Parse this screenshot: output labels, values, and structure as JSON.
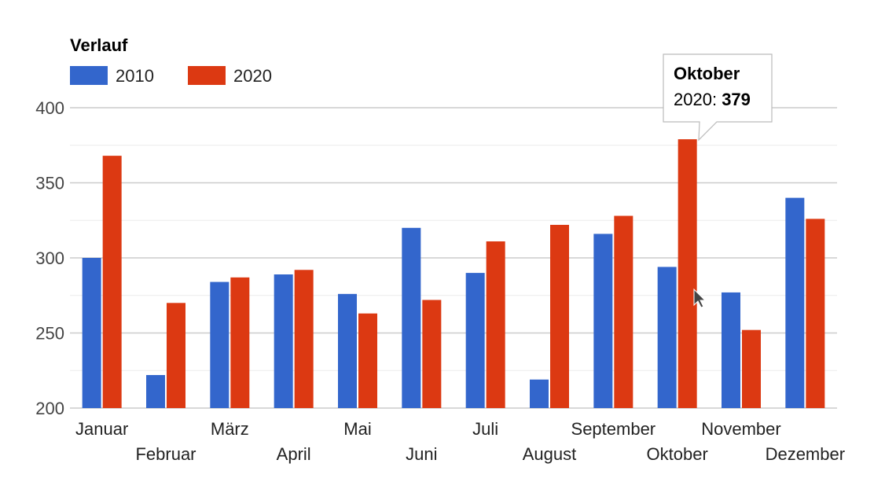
{
  "chart_data": {
    "type": "bar",
    "title": "Verlauf",
    "categories": [
      "Januar",
      "Februar",
      "März",
      "April",
      "Mai",
      "Juni",
      "Juli",
      "August",
      "September",
      "Oktober",
      "November",
      "Dezember"
    ],
    "series": [
      {
        "name": "2010",
        "color": "#3366cc",
        "values": [
          300,
          222,
          284,
          289,
          276,
          320,
          290,
          219,
          316,
          294,
          277,
          340
        ]
      },
      {
        "name": "2020",
        "color": "#dc3912",
        "values": [
          368,
          270,
          287,
          292,
          263,
          272,
          311,
          322,
          328,
          379,
          252,
          326
        ]
      }
    ],
    "yticks": [
      "400",
      "350",
      "300",
      "250",
      "200"
    ],
    "ylim": [
      200,
      400
    ],
    "grid": true,
    "legend_position": "top-left",
    "tooltip": {
      "title": "Oktober",
      "series": "2020",
      "separator": ": ",
      "value": "379"
    }
  }
}
